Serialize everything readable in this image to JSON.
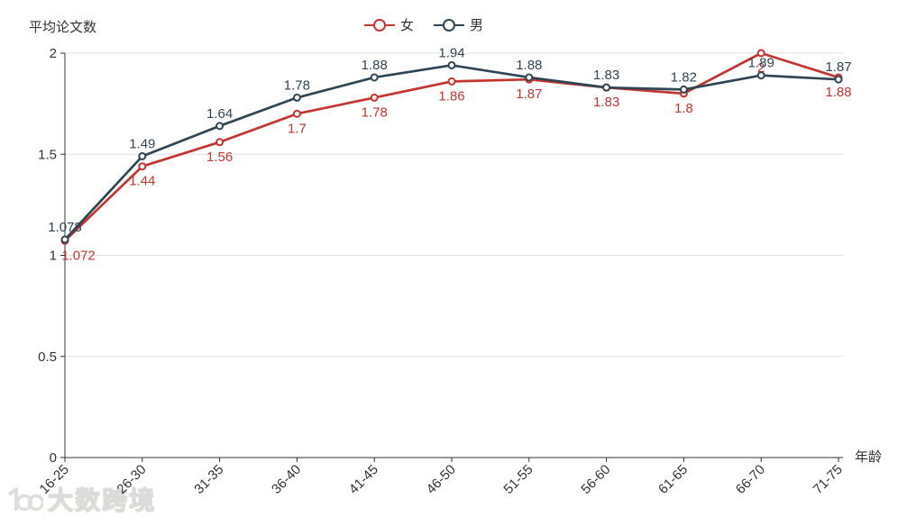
{
  "chart_data": {
    "type": "line",
    "title": "",
    "categories": [
      "16-25",
      "26-30",
      "31-35",
      "36-40",
      "41-45",
      "46-50",
      "51-55",
      "56-60",
      "61-65",
      "66-70",
      "71-75"
    ],
    "series": [
      {
        "name": "女",
        "color": "#c23531",
        "values": [
          1.072,
          1.44,
          1.56,
          1.7,
          1.78,
          1.86,
          1.87,
          1.83,
          1.8,
          2,
          1.88
        ],
        "labels": [
          "1.072",
          "1.44",
          "1.56",
          "1.7",
          "1.78",
          "1.86",
          "1.87",
          "1.83",
          "1.8",
          "2",
          "1.88"
        ],
        "label_position": "below"
      },
      {
        "name": "男",
        "color": "#2f4554",
        "values": [
          1.078,
          1.49,
          1.64,
          1.78,
          1.88,
          1.94,
          1.88,
          1.83,
          1.82,
          1.89,
          1.87
        ],
        "labels": [
          "1.078",
          "1.49",
          "1.64",
          "1.78",
          "1.88",
          "1.94",
          "1.88",
          "1.83",
          "1.82",
          "1.89",
          "1.87"
        ],
        "label_position": "above"
      }
    ],
    "xlabel": "年龄",
    "ylabel": "平均论文数",
    "ylim": [
      0,
      2
    ],
    "y_ticks": [
      0,
      0.5,
      1,
      1.5,
      2
    ],
    "y_tick_labels": [
      "0",
      "0.5",
      "1",
      "1.5",
      "2"
    ],
    "x_label_rotate": 45,
    "grid": "horizontal-only",
    "legend_position": "top-center",
    "marker": "empty-circle",
    "colors": {
      "axis_line": "#333333",
      "tick_label": "#333333",
      "gridline": "#e0e0e0",
      "background": "#ffffff"
    }
  },
  "watermark": {
    "text": "大数跨境",
    "logo": "100-logo"
  }
}
